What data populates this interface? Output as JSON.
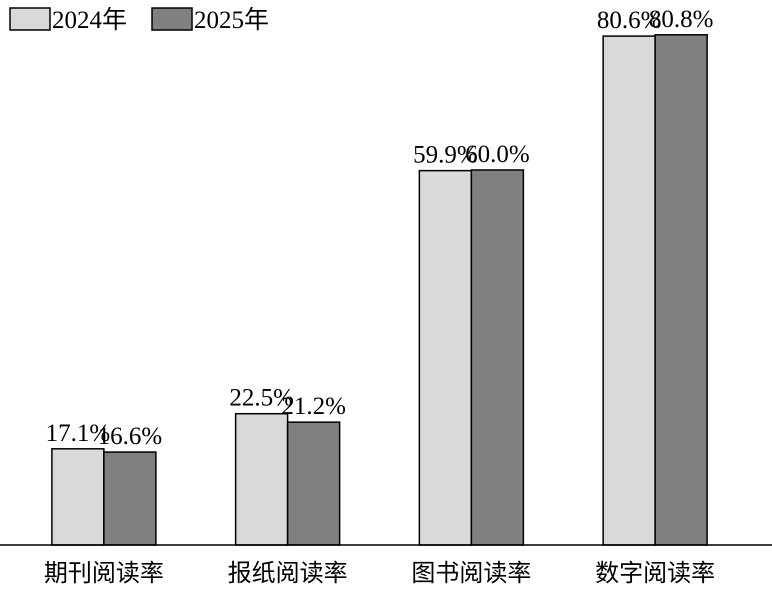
{
  "chart_data": {
    "type": "bar",
    "categories": [
      "期刊阅读率",
      "报纸阅读率",
      "图书阅读率",
      "数字阅读率"
    ],
    "series": [
      {
        "name": "2024年",
        "color": "#d9d9d9",
        "values": [
          17.1,
          22.5,
          59.9,
          80.6
        ],
        "value_labels": [
          "17.1%",
          "22.5%",
          "59.9%",
          "80.6%"
        ]
      },
      {
        "name": "2025年",
        "color": "#808080",
        "values": [
          16.6,
          21.2,
          60.0,
          80.8
        ],
        "value_labels": [
          "16.6%",
          "21.2%",
          "60.0%",
          "80.8%"
        ]
      }
    ],
    "ylim": [
      2.3,
      82
    ],
    "legend": "top-left"
  }
}
